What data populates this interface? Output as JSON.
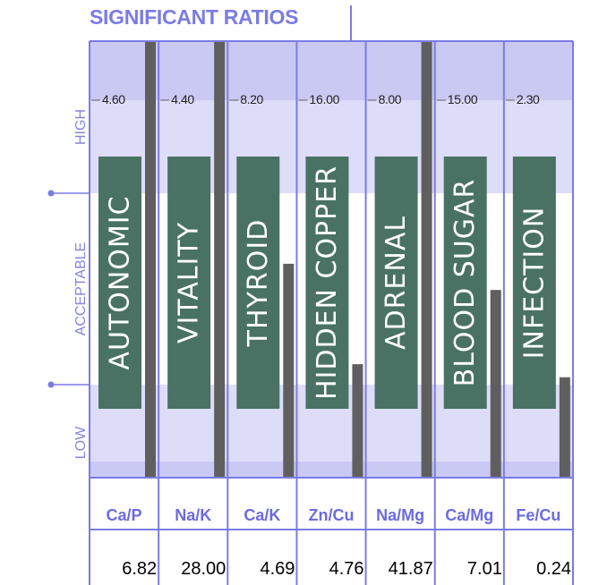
{
  "chart_data": {
    "type": "bar",
    "title": "SIGNIFICANT RATIOS",
    "bands": [
      "HIGH",
      "ACCEPTABLE",
      "LOW"
    ],
    "ylim": [
      0,
      1
    ],
    "columns": [
      {
        "name": "AUTONOMIC",
        "ratio": "Ca/P",
        "high_label": "4.60",
        "value": "6.82",
        "level": 1.0
      },
      {
        "name": "VITALITY",
        "ratio": "Na/K",
        "high_label": "4.40",
        "value": "28.00",
        "level": 1.0
      },
      {
        "name": "THYROID",
        "ratio": "Ca/K",
        "high_label": "8.20",
        "value": "4.69",
        "level": 0.49
      },
      {
        "name": "HIDDEN COPPER",
        "ratio": "Zn/Cu",
        "high_label": "16.00",
        "value": "4.76",
        "level": 0.26
      },
      {
        "name": "ADRENAL",
        "ratio": "Na/Mg",
        "high_label": "8.00",
        "value": "41.87",
        "level": 1.0
      },
      {
        "name": "BLOOD SUGAR",
        "ratio": "Ca/Mg",
        "high_label": "15.00",
        "value": "7.01",
        "level": 0.43
      },
      {
        "name": "INFECTION",
        "ratio": "Fe/Cu",
        "high_label": "2.30",
        "value": "0.24",
        "level": 0.23
      }
    ]
  },
  "colors": {
    "grid": "#7b7be6",
    "band_high": "#ddddf8",
    "band_low": "#ddddf8",
    "band_acceptable": "#ffffff",
    "band_top": "#c9c9f3",
    "label_box": "#4a7264",
    "level_bar": "#5f5f5f",
    "axis_text": "#8585e0",
    "ratio_text": "#6b6be0",
    "value_text": "#000000"
  }
}
